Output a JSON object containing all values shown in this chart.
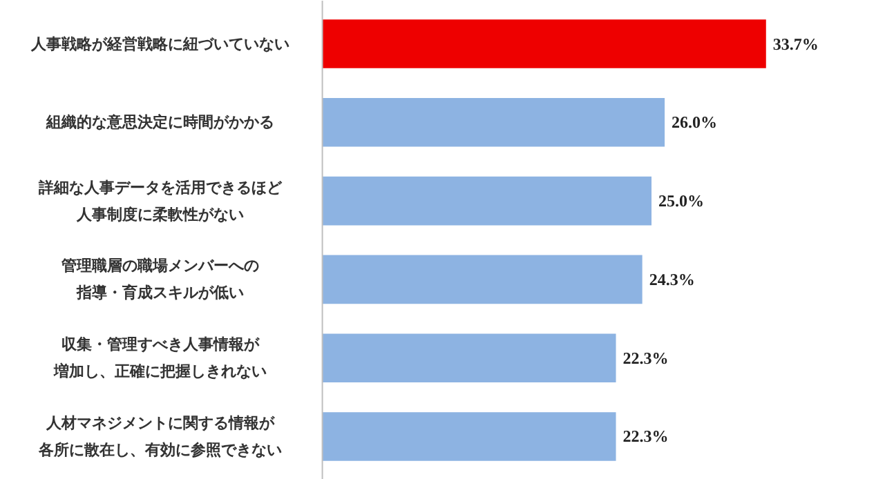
{
  "chart_data": {
    "type": "bar",
    "orientation": "horizontal",
    "categories": [
      "人事戦略が経営戦略に紐づいていない",
      "組織的な意思決定に時間がかかる",
      "詳細な人事データを活用できるほど人事制度に柔軟性がない",
      "管理職層の職場メンバーへの指導・育成スキルが低い",
      "収集・管理すべき人事情報が増加し、正確に把握しきれない",
      "人材マネジメントに関する情報が各所に散在し、有効に参照できない"
    ],
    "values": [
      33.7,
      26.0,
      25.0,
      24.3,
      22.3,
      22.3
    ],
    "colors": [
      "#ee0000",
      "#8db3e2",
      "#8db3e2",
      "#8db3e2",
      "#8db3e2",
      "#8db3e2"
    ],
    "value_labels": [
      "33.7%",
      "26.0%",
      "25.0%",
      "24.3%",
      "22.3%",
      "22.3%"
    ]
  }
}
